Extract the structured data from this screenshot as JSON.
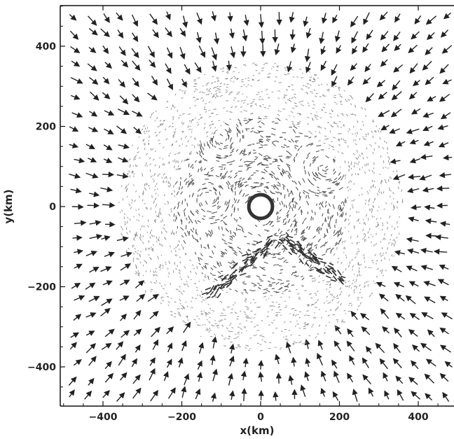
{
  "chart_data": {
    "type": "vector-field",
    "xlabel": "x(km)",
    "ylabel": "y(km)",
    "xlim": [
      -500,
      500
    ],
    "ylim": [
      -500,
      500
    ],
    "xticks": [
      -400,
      -200,
      0,
      200,
      400
    ],
    "yticks": [
      -400,
      -200,
      0,
      200,
      400
    ],
    "xtick_labels": [
      "−400",
      "−200",
      "0",
      "200",
      "400"
    ],
    "ytick_labels": [
      "−400",
      "−200",
      "0",
      "200",
      "400"
    ],
    "grid": false,
    "field": {
      "description_points": "radial inflow toward origin",
      "center": [
        0,
        0
      ],
      "outer_grid_spacing": 40,
      "outer_vector_length": 28,
      "inner_cloud_radius": 360,
      "dense_core_radius": 220,
      "central_void_radius": 30
    },
    "features": {
      "dark_streak_ridges": [
        {
          "from": [
            40,
            -80
          ],
          "to": [
            -130,
            -220
          ]
        },
        {
          "from": [
            50,
            -75
          ],
          "to": [
            200,
            -180
          ]
        }
      ],
      "swirl_features": [
        {
          "center": [
            -130,
            20
          ],
          "radius": 40
        },
        {
          "center": [
            -100,
            170
          ],
          "radius": 45
        },
        {
          "center": [
            160,
            100
          ],
          "radius": 50
        }
      ]
    },
    "colors": {
      "arrow": "#222222",
      "dense": "#555555",
      "sparse": "#888888",
      "axes": "#111111"
    }
  }
}
